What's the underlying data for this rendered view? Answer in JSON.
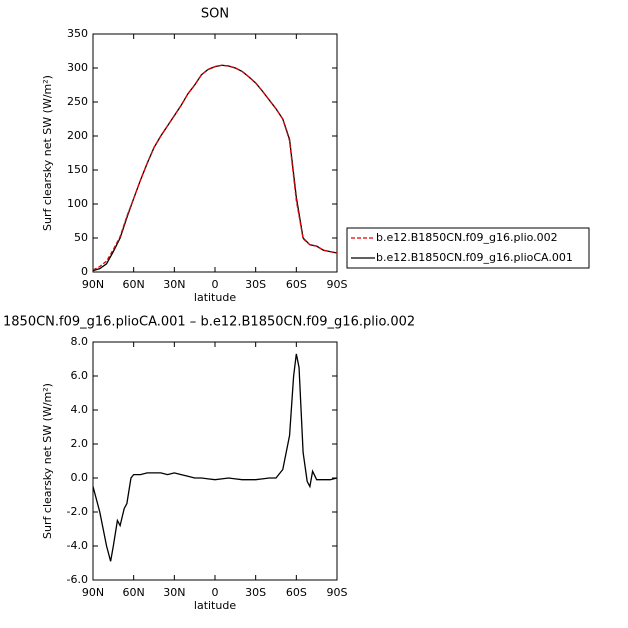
{
  "chart_data": [
    {
      "type": "line",
      "title": "SON",
      "xlabel": "latitude",
      "ylabel": "Surf clearsky net SW (W/m²)",
      "x": [
        90,
        85,
        80,
        75,
        70,
        65,
        60,
        55,
        50,
        45,
        40,
        35,
        30,
        25,
        20,
        15,
        10,
        5,
        0,
        -5,
        -10,
        -15,
        -20,
        -25,
        -30,
        -35,
        -40,
        -45,
        -50,
        -55,
        -60,
        -65,
        -70,
        -75,
        -80,
        -85,
        -90
      ],
      "series": [
        {
          "name": "b.e12.B1850CN.f09_g16.plio.002",
          "color": "#e00000",
          "dashed": true,
          "values": [
            3,
            8,
            16,
            33,
            52,
            82,
            108,
            135,
            160,
            183,
            200,
            215,
            230,
            245,
            262,
            275,
            290,
            298,
            302,
            304,
            303,
            300,
            295,
            287,
            278,
            266,
            253,
            240,
            225,
            193,
            105,
            49,
            40,
            38,
            32,
            30,
            28
          ]
        },
        {
          "name": "b.e12.B1850CN.f09_g16.plioCA.001",
          "color": "#000000",
          "dashed": false,
          "values": [
            2,
            5,
            12,
            30,
            50,
            80,
            108,
            135,
            160,
            183,
            200,
            215,
            230,
            245,
            262,
            275,
            290,
            298,
            302,
            304,
            303,
            300,
            295,
            287,
            278,
            266,
            253,
            240,
            225,
            195,
            110,
            50,
            40,
            38,
            32,
            30,
            28
          ]
        }
      ],
      "xlim": [
        90,
        -90
      ],
      "ylim": [
        0,
        350
      ],
      "xticks": [
        {
          "value": 90,
          "label": "90N"
        },
        {
          "value": 60,
          "label": "60N"
        },
        {
          "value": 30,
          "label": "30N"
        },
        0,
        {
          "value": -30,
          "label": "30S"
        },
        {
          "value": -60,
          "label": "60S"
        },
        {
          "value": -90,
          "label": "90S"
        }
      ],
      "yticks": [
        0,
        50,
        100,
        150,
        200,
        250,
        300,
        350
      ],
      "legend": "right"
    },
    {
      "type": "line",
      "title": "1850CN.f09_g16.plioCA.001 – b.e12.B1850CN.f09_g16.plio.002",
      "xlabel": "latitude",
      "ylabel": "Surf clearsky net SW (W/m²)",
      "x": [
        90,
        85,
        80,
        77,
        75,
        72,
        70,
        67,
        65,
        62,
        60,
        55,
        50,
        45,
        40,
        35,
        30,
        25,
        20,
        15,
        10,
        5,
        0,
        -5,
        -10,
        -15,
        -20,
        -25,
        -30,
        -35,
        -40,
        -45,
        -50,
        -55,
        -58,
        -60,
        -62,
        -65,
        -68,
        -70,
        -72,
        -75,
        -80,
        -85,
        -90
      ],
      "series": [
        {
          "color": "#000000",
          "dashed": false,
          "values": [
            -0.5,
            -2,
            -4,
            -4.9,
            -4,
            -2.5,
            -2.8,
            -1.8,
            -1.5,
            0,
            0.2,
            0.2,
            0.3,
            0.3,
            0.3,
            0.2,
            0.3,
            0.2,
            0.1,
            0,
            0,
            -0.05,
            -0.1,
            -0.05,
            0,
            -0.05,
            -0.1,
            -0.1,
            -0.1,
            -0.05,
            0,
            0,
            0.5,
            2.5,
            6,
            7.3,
            6.5,
            1.5,
            -0.2,
            -0.5,
            0.4,
            -0.1,
            -0.1,
            -0.1,
            0
          ]
        }
      ],
      "xlim": [
        90,
        -90
      ],
      "ylim": [
        -6,
        8
      ],
      "xticks": [
        {
          "value": 90,
          "label": "90N"
        },
        {
          "value": 60,
          "label": "60N"
        },
        {
          "value": 30,
          "label": "30N"
        },
        0,
        {
          "value": -30,
          "label": "30S"
        },
        {
          "value": -60,
          "label": "60S"
        },
        {
          "value": -90,
          "label": "90S"
        }
      ],
      "yticks": [
        {
          "value": -6,
          "label": "-6.0"
        },
        {
          "value": -4,
          "label": "-4.0"
        },
        {
          "value": -2,
          "label": "-2.0"
        },
        {
          "value": 0,
          "label": "0.0"
        },
        {
          "value": 2,
          "label": "2.0"
        },
        {
          "value": 4,
          "label": "4.0"
        },
        {
          "value": 6,
          "label": "6.0"
        },
        {
          "value": 8,
          "label": "8.0"
        }
      ]
    }
  ]
}
